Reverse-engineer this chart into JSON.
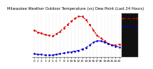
{
  "title": "Milwaukee Weather Outdoor Temperature (vs) Dew Point (Last 24 Hours)",
  "temp": [
    30,
    27,
    25,
    23,
    22,
    21,
    24,
    28,
    33,
    38,
    43,
    47,
    50,
    50,
    45,
    38,
    30,
    22,
    18,
    14,
    10,
    8,
    8,
    9
  ],
  "dew": [
    -5,
    -6,
    -6,
    -7,
    -7,
    -7,
    -6,
    -5,
    -4,
    -3,
    -2,
    -1,
    0,
    2,
    4,
    8,
    12,
    14,
    14,
    12,
    10,
    8,
    6,
    5
  ],
  "ylim": [
    -10,
    55
  ],
  "yticks": [
    50,
    40,
    30,
    20,
    10,
    0,
    -10
  ],
  "n_points": 24,
  "temp_color": "#dd0000",
  "dew_color": "#0000cc",
  "bg_color": "#ffffff",
  "grid_color": "#aaaaaa",
  "title_fontsize": 3.8,
  "tick_fontsize": 3.0,
  "legend_bg": "#111111",
  "legend_text_color": "#ffffff"
}
